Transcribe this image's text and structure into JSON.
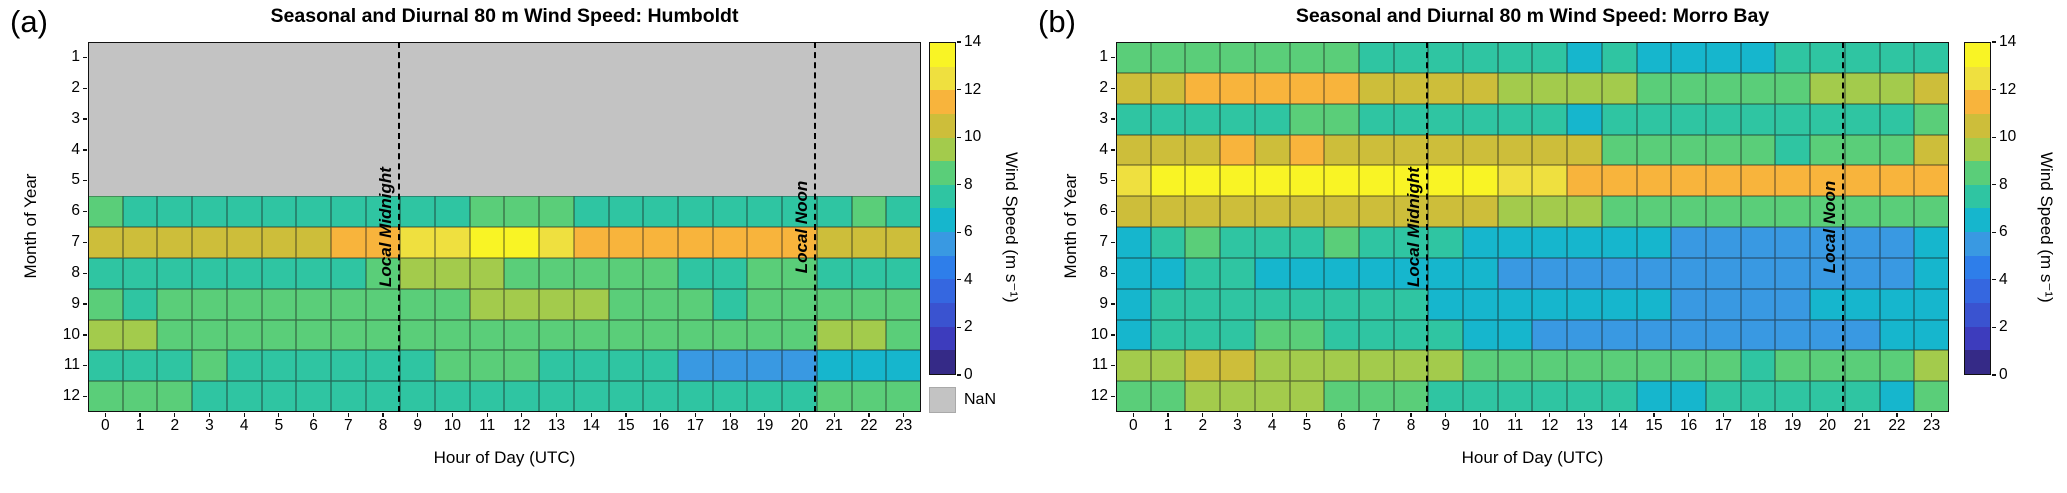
{
  "figure": {
    "background": "#ffffff"
  },
  "colorbar": {
    "label": "Wind Speed (m s⁻¹)",
    "ticks": [
      0,
      2,
      4,
      6,
      8,
      10,
      12,
      14
    ],
    "min": 0,
    "max": 14,
    "band_colors": [
      "#352a87",
      "#3d3cbd",
      "#3a53d0",
      "#3567e0",
      "#2e7eea",
      "#3999e2",
      "#16b6cd",
      "#2fc5a2",
      "#5ace79",
      "#a3cb4c",
      "#cdbe3a",
      "#f8b43c",
      "#efe03f",
      "#f9f425"
    ],
    "nan_label": "NaN",
    "nan_color": "#c3c3c3"
  },
  "chart_data": [
    {
      "type": "heatmap",
      "panel_tag": "(a)",
      "title": "Seasonal and Diurnal 80 m Wind Speed: Humboldt",
      "xlabel": "Hour of Day (UTC)",
      "ylabel": "Month of Year",
      "x": [
        0,
        1,
        2,
        3,
        4,
        5,
        6,
        7,
        8,
        9,
        10,
        11,
        12,
        13,
        14,
        15,
        16,
        17,
        18,
        19,
        20,
        21,
        22,
        23
      ],
      "y": [
        1,
        2,
        3,
        4,
        5,
        6,
        7,
        8,
        9,
        10,
        11,
        12
      ],
      "clim": [
        0,
        14
      ],
      "legend_position": "right-colorbar",
      "grid": true,
      "has_nan_legend": true,
      "nan_months": [
        1,
        2,
        3,
        4,
        5
      ],
      "annotations": [
        {
          "text": "Local Midnight",
          "axis_hour": 8.45
        },
        {
          "text": "Local Noon",
          "axis_hour": 20.45
        }
      ],
      "values": [
        [
          null,
          null,
          null,
          null,
          null,
          null,
          null,
          null,
          null,
          null,
          null,
          null,
          null,
          null,
          null,
          null,
          null,
          null,
          null,
          null,
          null,
          null,
          null,
          null
        ],
        [
          null,
          null,
          null,
          null,
          null,
          null,
          null,
          null,
          null,
          null,
          null,
          null,
          null,
          null,
          null,
          null,
          null,
          null,
          null,
          null,
          null,
          null,
          null,
          null
        ],
        [
          null,
          null,
          null,
          null,
          null,
          null,
          null,
          null,
          null,
          null,
          null,
          null,
          null,
          null,
          null,
          null,
          null,
          null,
          null,
          null,
          null,
          null,
          null,
          null
        ],
        [
          null,
          null,
          null,
          null,
          null,
          null,
          null,
          null,
          null,
          null,
          null,
          null,
          null,
          null,
          null,
          null,
          null,
          null,
          null,
          null,
          null,
          null,
          null,
          null
        ],
        [
          null,
          null,
          null,
          null,
          null,
          null,
          null,
          null,
          null,
          null,
          null,
          null,
          null,
          null,
          null,
          null,
          null,
          null,
          null,
          null,
          null,
          null,
          null,
          null
        ],
        [
          8.5,
          7.5,
          7.5,
          7.5,
          7.5,
          7.5,
          7.5,
          7.5,
          7.5,
          7.5,
          7.5,
          8.5,
          8.5,
          8.5,
          7.5,
          7.5,
          7.5,
          7.5,
          7.5,
          7.5,
          7.5,
          7.5,
          8.5,
          7.5
        ],
        [
          10.5,
          10.5,
          10.5,
          10.5,
          10.5,
          10.5,
          10.5,
          11.5,
          11.5,
          12.5,
          12.5,
          13.5,
          13.5,
          12.5,
          11.5,
          11.5,
          11.5,
          11.5,
          11.5,
          11.5,
          11.5,
          10.5,
          10.5,
          10.5
        ],
        [
          7.5,
          7.5,
          7.5,
          7.5,
          7.5,
          7.5,
          7.5,
          7.5,
          8.5,
          9.5,
          9.5,
          9.5,
          8.5,
          8.5,
          8.5,
          8.5,
          8.5,
          7.5,
          7.5,
          8.5,
          8.5,
          7.5,
          7.5,
          7.5
        ],
        [
          8.5,
          7.5,
          8.5,
          8.5,
          8.5,
          8.5,
          8.5,
          8.5,
          8.5,
          8.5,
          8.5,
          9.5,
          9.5,
          9.5,
          9.5,
          8.5,
          8.5,
          8.5,
          7.5,
          8.5,
          8.5,
          8.5,
          8.5,
          8.5
        ],
        [
          9.5,
          9.5,
          8.5,
          8.5,
          8.5,
          8.5,
          8.5,
          8.5,
          8.5,
          8.5,
          8.5,
          8.5,
          8.5,
          8.5,
          8.5,
          8.5,
          8.5,
          8.5,
          8.5,
          8.5,
          8.5,
          9.5,
          9.5,
          8.5
        ],
        [
          7.5,
          7.5,
          7.5,
          8.5,
          7.5,
          7.5,
          7.5,
          7.5,
          7.5,
          7.5,
          8.5,
          8.5,
          8.5,
          7.5,
          7.5,
          7.5,
          7.5,
          5.5,
          5.5,
          5.5,
          5.5,
          6.5,
          6.5,
          6.5
        ],
        [
          8.5,
          8.5,
          8.5,
          7.5,
          7.5,
          7.5,
          7.5,
          7.5,
          7.5,
          7.5,
          7.5,
          7.5,
          7.5,
          7.5,
          7.5,
          7.5,
          7.5,
          7.5,
          7.5,
          7.5,
          7.5,
          8.5,
          8.5,
          8.5
        ]
      ]
    },
    {
      "type": "heatmap",
      "panel_tag": "(b)",
      "title": "Seasonal and Diurnal 80 m Wind Speed: Morro Bay",
      "xlabel": "Hour of Day (UTC)",
      "ylabel": "Month of Year",
      "x": [
        0,
        1,
        2,
        3,
        4,
        5,
        6,
        7,
        8,
        9,
        10,
        11,
        12,
        13,
        14,
        15,
        16,
        17,
        18,
        19,
        20,
        21,
        22,
        23
      ],
      "y": [
        1,
        2,
        3,
        4,
        5,
        6,
        7,
        8,
        9,
        10,
        11,
        12
      ],
      "clim": [
        0,
        14
      ],
      "legend_position": "right-colorbar",
      "grid": true,
      "has_nan_legend": false,
      "nan_months": [],
      "annotations": [
        {
          "text": "Local Midnight",
          "axis_hour": 8.45
        },
        {
          "text": "Local Noon",
          "axis_hour": 20.45
        }
      ],
      "values": [
        [
          8.5,
          8.5,
          8.5,
          8.5,
          8.5,
          8.5,
          8.5,
          7.5,
          7.5,
          7.5,
          7.5,
          7.5,
          7.5,
          6.5,
          7.5,
          6.5,
          6.5,
          6.5,
          6.5,
          7.5,
          7.5,
          7.5,
          7.5,
          7.5
        ],
        [
          10.5,
          10.5,
          11.5,
          11.5,
          11.5,
          11.5,
          11.5,
          10.5,
          10.5,
          10.5,
          10.5,
          9.5,
          9.5,
          9.5,
          9.5,
          8.5,
          8.5,
          8.5,
          8.5,
          8.5,
          9.5,
          9.5,
          9.5,
          10.5
        ],
        [
          7.5,
          7.5,
          7.5,
          7.5,
          7.5,
          8.5,
          8.5,
          7.5,
          7.5,
          7.5,
          7.5,
          7.5,
          7.5,
          6.5,
          7.5,
          7.5,
          7.5,
          7.5,
          7.5,
          7.5,
          7.5,
          7.5,
          7.5,
          8.5
        ],
        [
          10.5,
          10.5,
          10.5,
          11.5,
          10.5,
          11.5,
          10.5,
          10.5,
          10.5,
          10.5,
          10.5,
          10.5,
          10.5,
          10.5,
          8.5,
          8.5,
          8.5,
          8.5,
          8.5,
          7.5,
          8.5,
          8.5,
          8.5,
          10.5
        ],
        [
          12.5,
          13.5,
          13.5,
          13.5,
          13.5,
          13.5,
          13.5,
          13.5,
          13.5,
          13.5,
          13.5,
          12.5,
          12.5,
          11.5,
          11.5,
          11.5,
          11.5,
          11.5,
          11.5,
          11.5,
          11.5,
          11.5,
          11.5,
          11.5
        ],
        [
          10.5,
          10.5,
          10.5,
          10.5,
          10.5,
          10.5,
          10.5,
          10.5,
          10.5,
          10.5,
          10.5,
          9.5,
          9.5,
          9.5,
          8.5,
          8.5,
          8.5,
          8.5,
          8.5,
          8.5,
          8.5,
          8.5,
          8.5,
          8.5
        ],
        [
          6.5,
          7.5,
          8.5,
          7.5,
          7.5,
          7.5,
          8.5,
          7.5,
          7.5,
          7.5,
          6.5,
          6.5,
          6.5,
          6.5,
          6.5,
          6.5,
          5.5,
          5.5,
          5.5,
          5.5,
          5.5,
          5.5,
          5.5,
          6.5
        ],
        [
          6.5,
          6.5,
          7.5,
          7.5,
          6.5,
          6.5,
          6.5,
          6.5,
          6.5,
          6.5,
          6.5,
          5.5,
          5.5,
          5.5,
          5.5,
          5.5,
          5.5,
          5.5,
          5.5,
          5.5,
          5.5,
          5.5,
          5.5,
          6.5
        ],
        [
          6.5,
          7.5,
          7.5,
          7.5,
          7.5,
          7.5,
          7.5,
          7.5,
          7.5,
          6.5,
          6.5,
          6.5,
          6.5,
          6.5,
          6.5,
          6.5,
          5.5,
          5.5,
          5.5,
          5.5,
          6.5,
          6.5,
          6.5,
          6.5
        ],
        [
          6.5,
          7.5,
          7.5,
          7.5,
          8.5,
          8.5,
          7.5,
          7.5,
          7.5,
          7.5,
          6.5,
          6.5,
          5.5,
          5.5,
          5.5,
          5.5,
          5.5,
          5.5,
          5.5,
          5.5,
          5.5,
          5.5,
          6.5,
          6.5
        ],
        [
          9.5,
          9.5,
          10.5,
          10.5,
          9.5,
          9.5,
          9.5,
          9.5,
          9.5,
          9.5,
          8.5,
          8.5,
          8.5,
          8.5,
          8.5,
          8.5,
          8.5,
          8.5,
          7.5,
          8.5,
          8.5,
          8.5,
          8.5,
          9.5
        ],
        [
          8.5,
          8.5,
          9.5,
          9.5,
          9.5,
          9.5,
          8.5,
          8.5,
          8.5,
          7.5,
          7.5,
          7.5,
          7.5,
          7.5,
          7.5,
          6.5,
          6.5,
          7.5,
          7.5,
          7.5,
          7.5,
          7.5,
          6.5,
          8.5
        ]
      ]
    }
  ]
}
